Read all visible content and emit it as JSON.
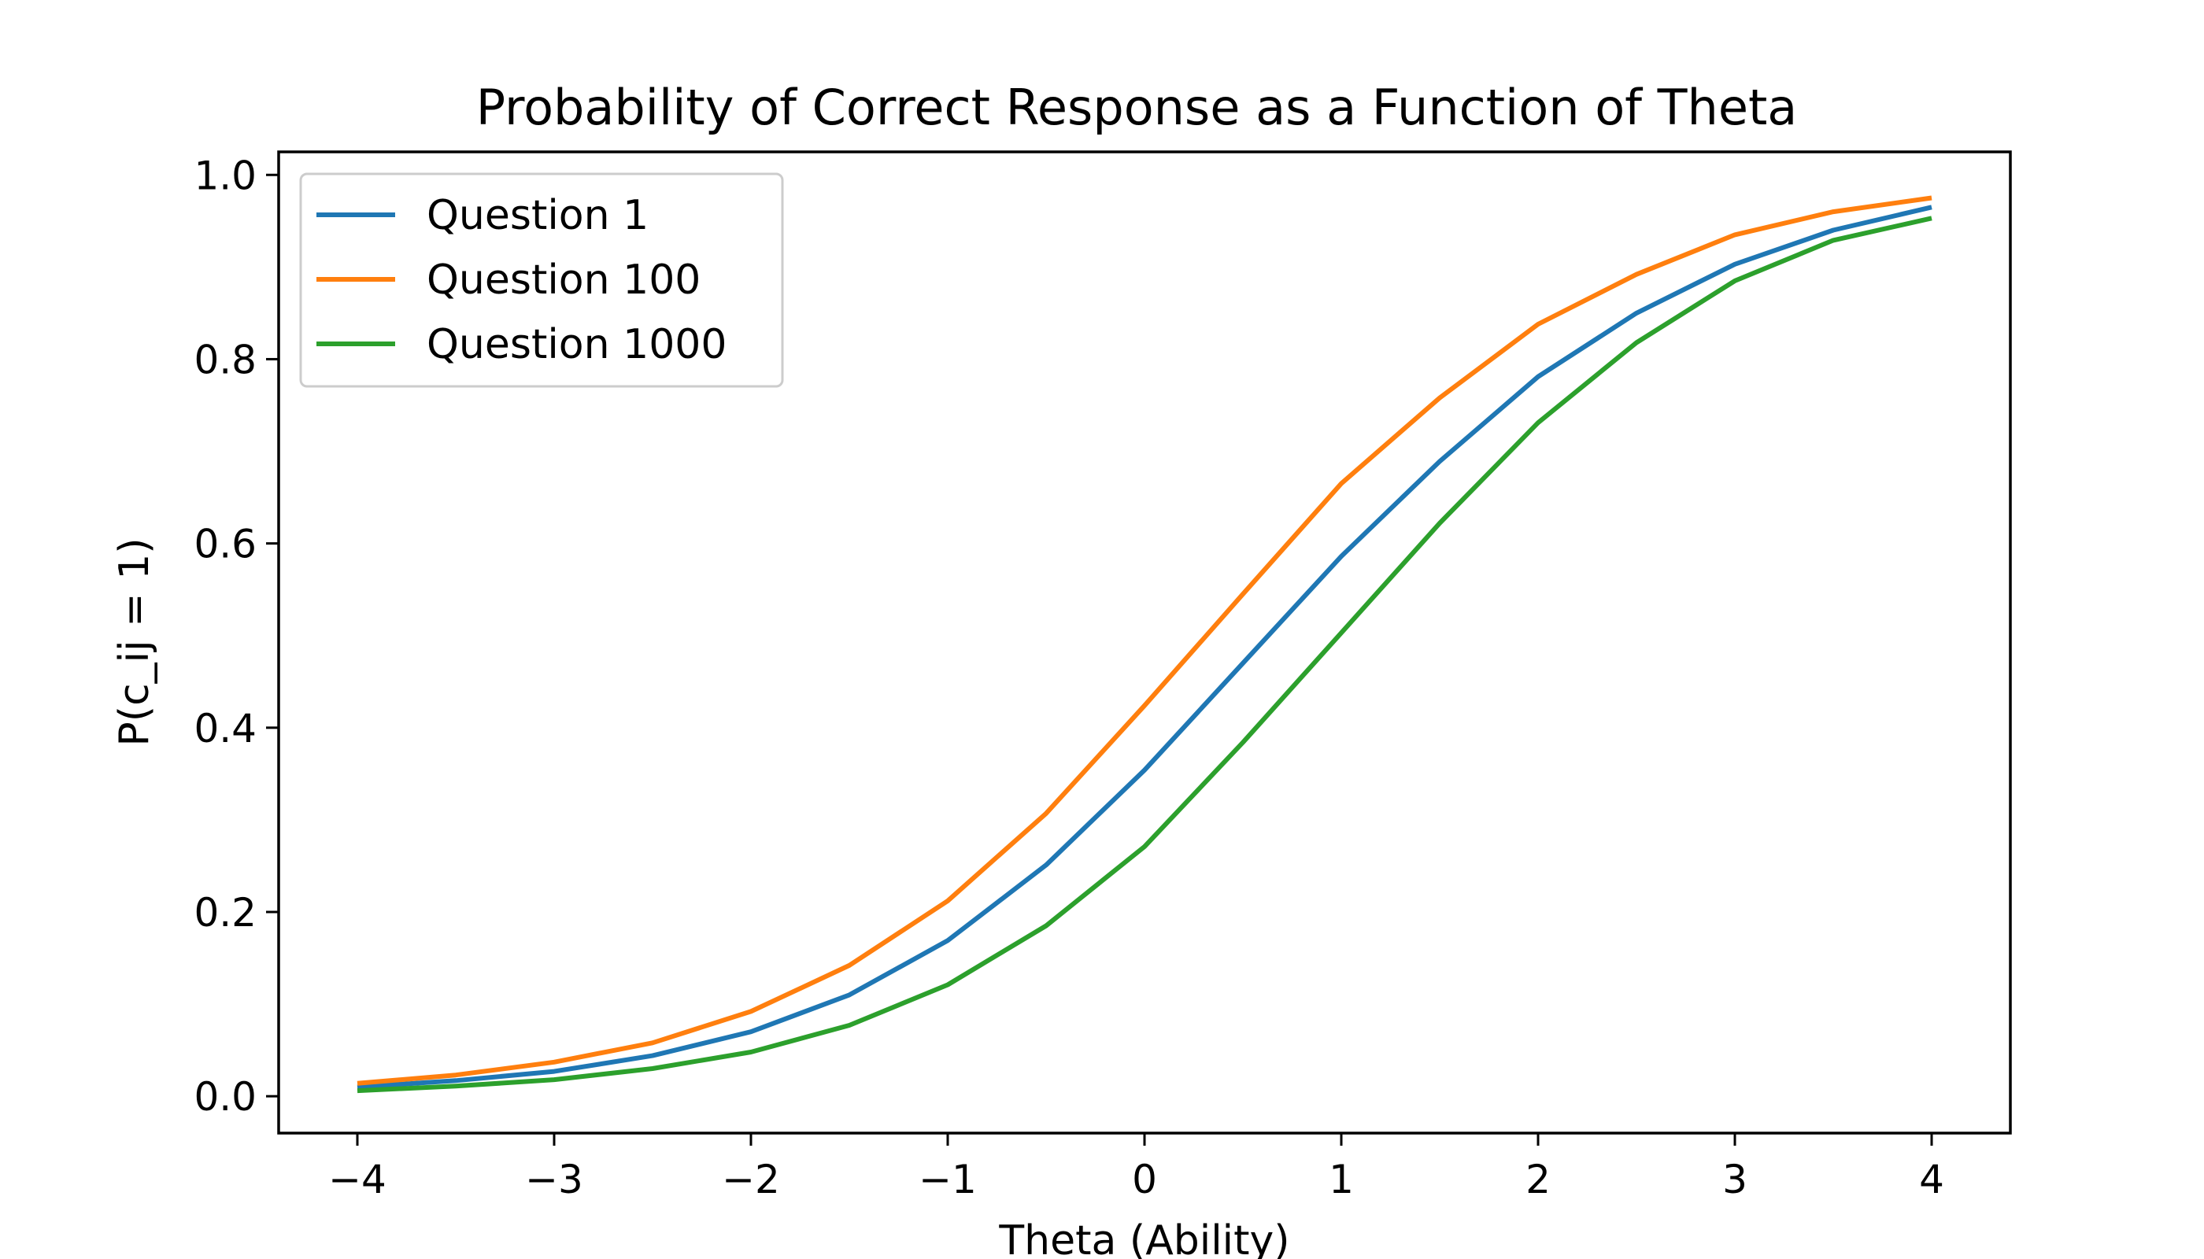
{
  "chart_data": {
    "type": "line",
    "title": "Probability of Correct Response as a Function of Theta",
    "xlabel": "Theta (Ability)",
    "ylabel": "P(c_ij = 1)",
    "xlim": [
      -4.4,
      4.4
    ],
    "ylim": [
      -0.04,
      1.025
    ],
    "xticks": [
      -4,
      -3,
      -2,
      -1,
      0,
      1,
      2,
      3,
      4
    ],
    "xtick_labels": [
      "−4",
      "−3",
      "−2",
      "−1",
      "0",
      "1",
      "2",
      "3",
      "4"
    ],
    "yticks": [
      0.0,
      0.2,
      0.4,
      0.6,
      0.8,
      1.0
    ],
    "ytick_labels": [
      "0.0",
      "0.2",
      "0.4",
      "0.6",
      "0.8",
      "1.0"
    ],
    "grid": false,
    "legend_position": "upper-left",
    "x": [
      -4,
      -3.5,
      -3,
      -2.5,
      -2,
      -1.5,
      -1,
      -0.5,
      0,
      0.5,
      1,
      1.5,
      2,
      2.5,
      3,
      3.5,
      4
    ],
    "series": [
      {
        "name": "Question 1",
        "color": "#1f77b4",
        "values": [
          0.01,
          0.017,
          0.027,
          0.044,
          0.07,
          0.11,
          0.169,
          0.251,
          0.354,
          0.47,
          0.586,
          0.689,
          0.781,
          0.85,
          0.903,
          0.94,
          0.965
        ]
      },
      {
        "name": "Question 100",
        "color": "#ff7f0e",
        "values": [
          0.014,
          0.023,
          0.037,
          0.058,
          0.092,
          0.142,
          0.212,
          0.307,
          0.424,
          0.545,
          0.665,
          0.758,
          0.838,
          0.892,
          0.935,
          0.96,
          0.975
        ]
      },
      {
        "name": "Question 1000",
        "color": "#2ca02c",
        "values": [
          0.006,
          0.011,
          0.018,
          0.03,
          0.048,
          0.077,
          0.121,
          0.185,
          0.271,
          0.384,
          0.503,
          0.622,
          0.731,
          0.818,
          0.885,
          0.929,
          0.953
        ]
      }
    ]
  }
}
